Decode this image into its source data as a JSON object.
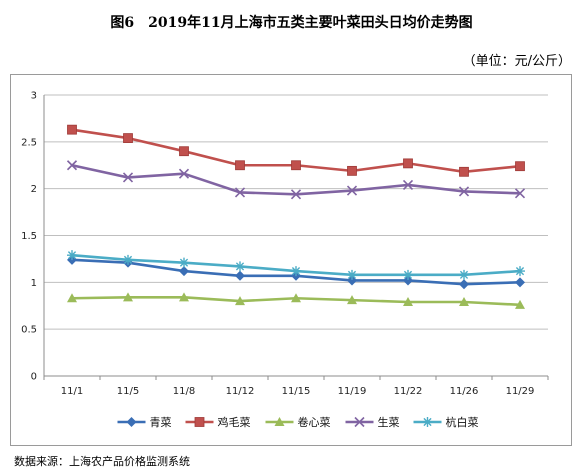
{
  "page": {
    "title": "图6　2019年11月上海市五类主要叶菜田头日均价走势图",
    "unit": "（单位：元/公斤）",
    "source": "数据来源：上海农产品价格监测系统"
  },
  "chart_data": {
    "type": "line",
    "title": "图6　2019年11月上海市五类主要叶菜田头日均价走势图",
    "ylabel": "（单位：元/公斤）",
    "xlabel": "",
    "categories": [
      "11/1",
      "11/5",
      "11/8",
      "11/12",
      "11/15",
      "11/19",
      "11/22",
      "11/26",
      "11/29"
    ],
    "ylim": [
      0,
      3
    ],
    "yticks": [
      "0",
      "0.5",
      "1",
      "1.5",
      "2",
      "2.5",
      "3"
    ],
    "grid": true,
    "legend_position": "bottom",
    "series": [
      {
        "name": "青菜",
        "color": "#3A6EB5",
        "marker": "diamond",
        "values": [
          1.24,
          1.21,
          1.12,
          1.07,
          1.07,
          1.02,
          1.02,
          0.98,
          1.0
        ]
      },
      {
        "name": "鸡毛菜",
        "color": "#C0504D",
        "marker": "square",
        "values": [
          2.63,
          2.54,
          2.4,
          2.25,
          2.25,
          2.19,
          2.27,
          2.18,
          2.24
        ]
      },
      {
        "name": "卷心菜",
        "color": "#9BBB59",
        "marker": "triangle",
        "values": [
          0.83,
          0.84,
          0.84,
          0.8,
          0.83,
          0.81,
          0.79,
          0.79,
          0.76
        ]
      },
      {
        "name": "生菜",
        "color": "#8064A2",
        "marker": "x",
        "values": [
          2.25,
          2.12,
          2.16,
          1.96,
          1.94,
          1.98,
          2.04,
          1.97,
          1.95
        ]
      },
      {
        "name": "杭白菜",
        "color": "#4BACC6",
        "marker": "star",
        "values": [
          1.29,
          1.24,
          1.21,
          1.17,
          1.12,
          1.08,
          1.08,
          1.08,
          1.12
        ]
      }
    ]
  }
}
